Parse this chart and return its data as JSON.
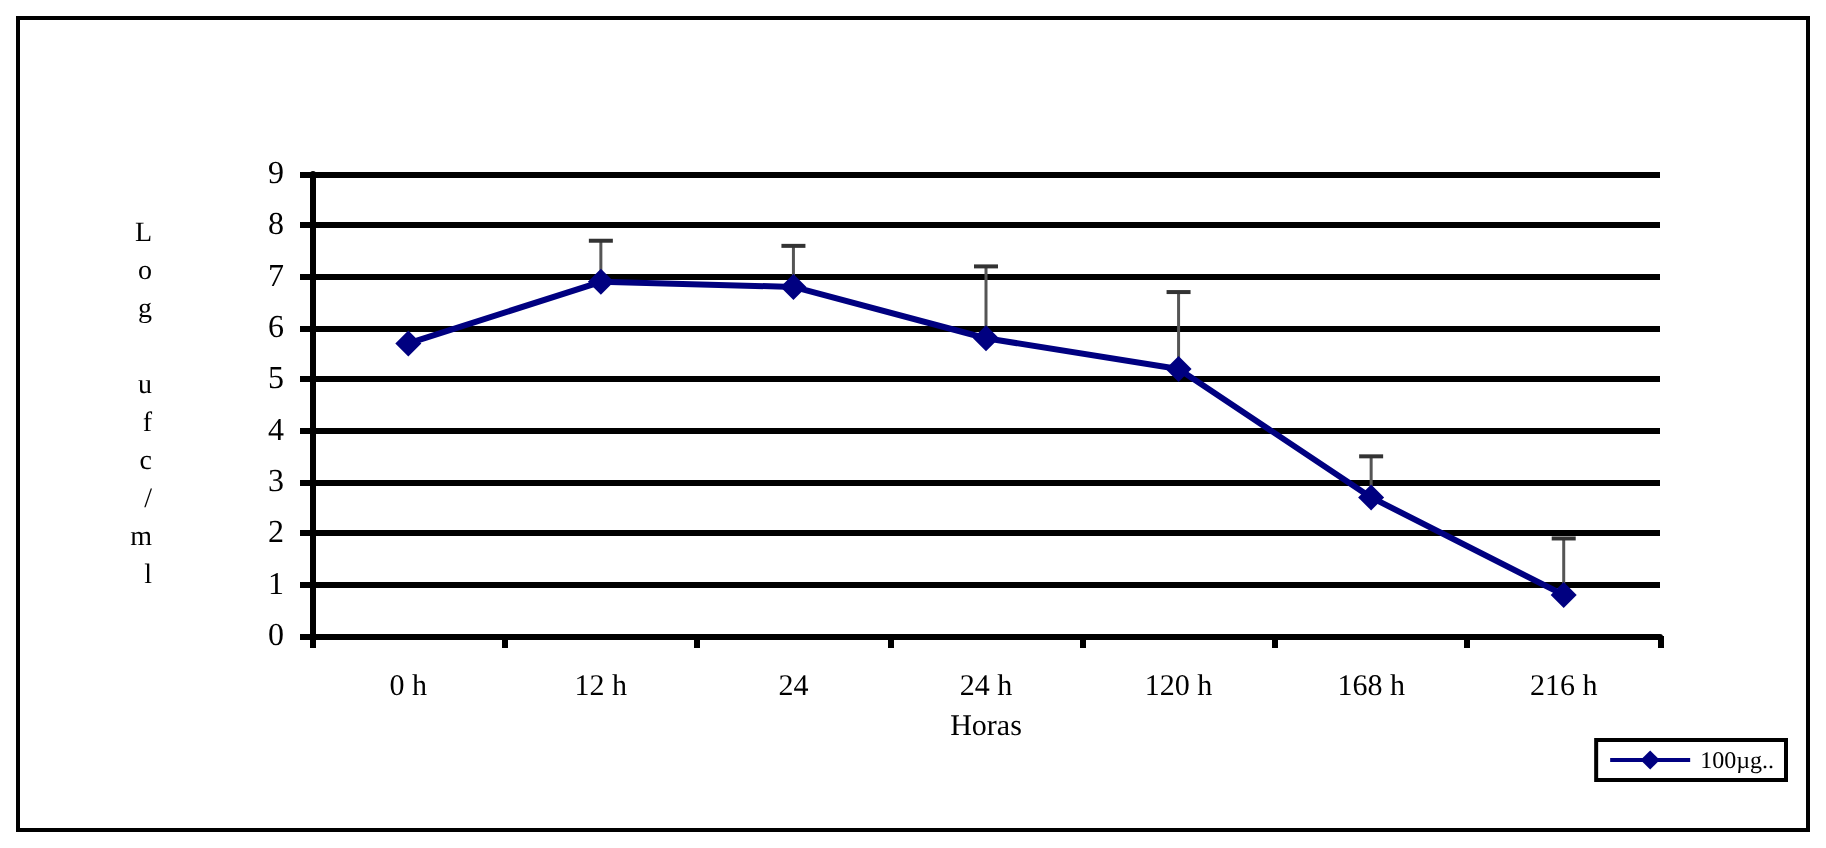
{
  "chart_data": {
    "type": "line",
    "xlabel": "Horas",
    "ylabel": "Log ufc/ml",
    "categories": [
      "0 h",
      "12 h",
      "24",
      "24 h",
      "120 h",
      "168 h",
      "216 h"
    ],
    "series": [
      {
        "name": "100µg..",
        "color": "#000080",
        "values": [
          5.7,
          6.9,
          6.8,
          5.8,
          5.2,
          2.7,
          0.8
        ],
        "errors": [
          null,
          [
            6.9,
            7.7
          ],
          [
            6.8,
            7.6
          ],
          [
            5.8,
            7.2
          ],
          [
            5.2,
            6.7
          ],
          [
            2.7,
            3.5
          ],
          [
            0.8,
            1.9
          ]
        ]
      }
    ],
    "ylim": [
      0,
      9
    ],
    "yticks": [
      0,
      1,
      2,
      3,
      4,
      5,
      6,
      7,
      8,
      9
    ],
    "grid": "y",
    "legend": "bottom right",
    "marker": "diamond",
    "line_style": "solid"
  }
}
